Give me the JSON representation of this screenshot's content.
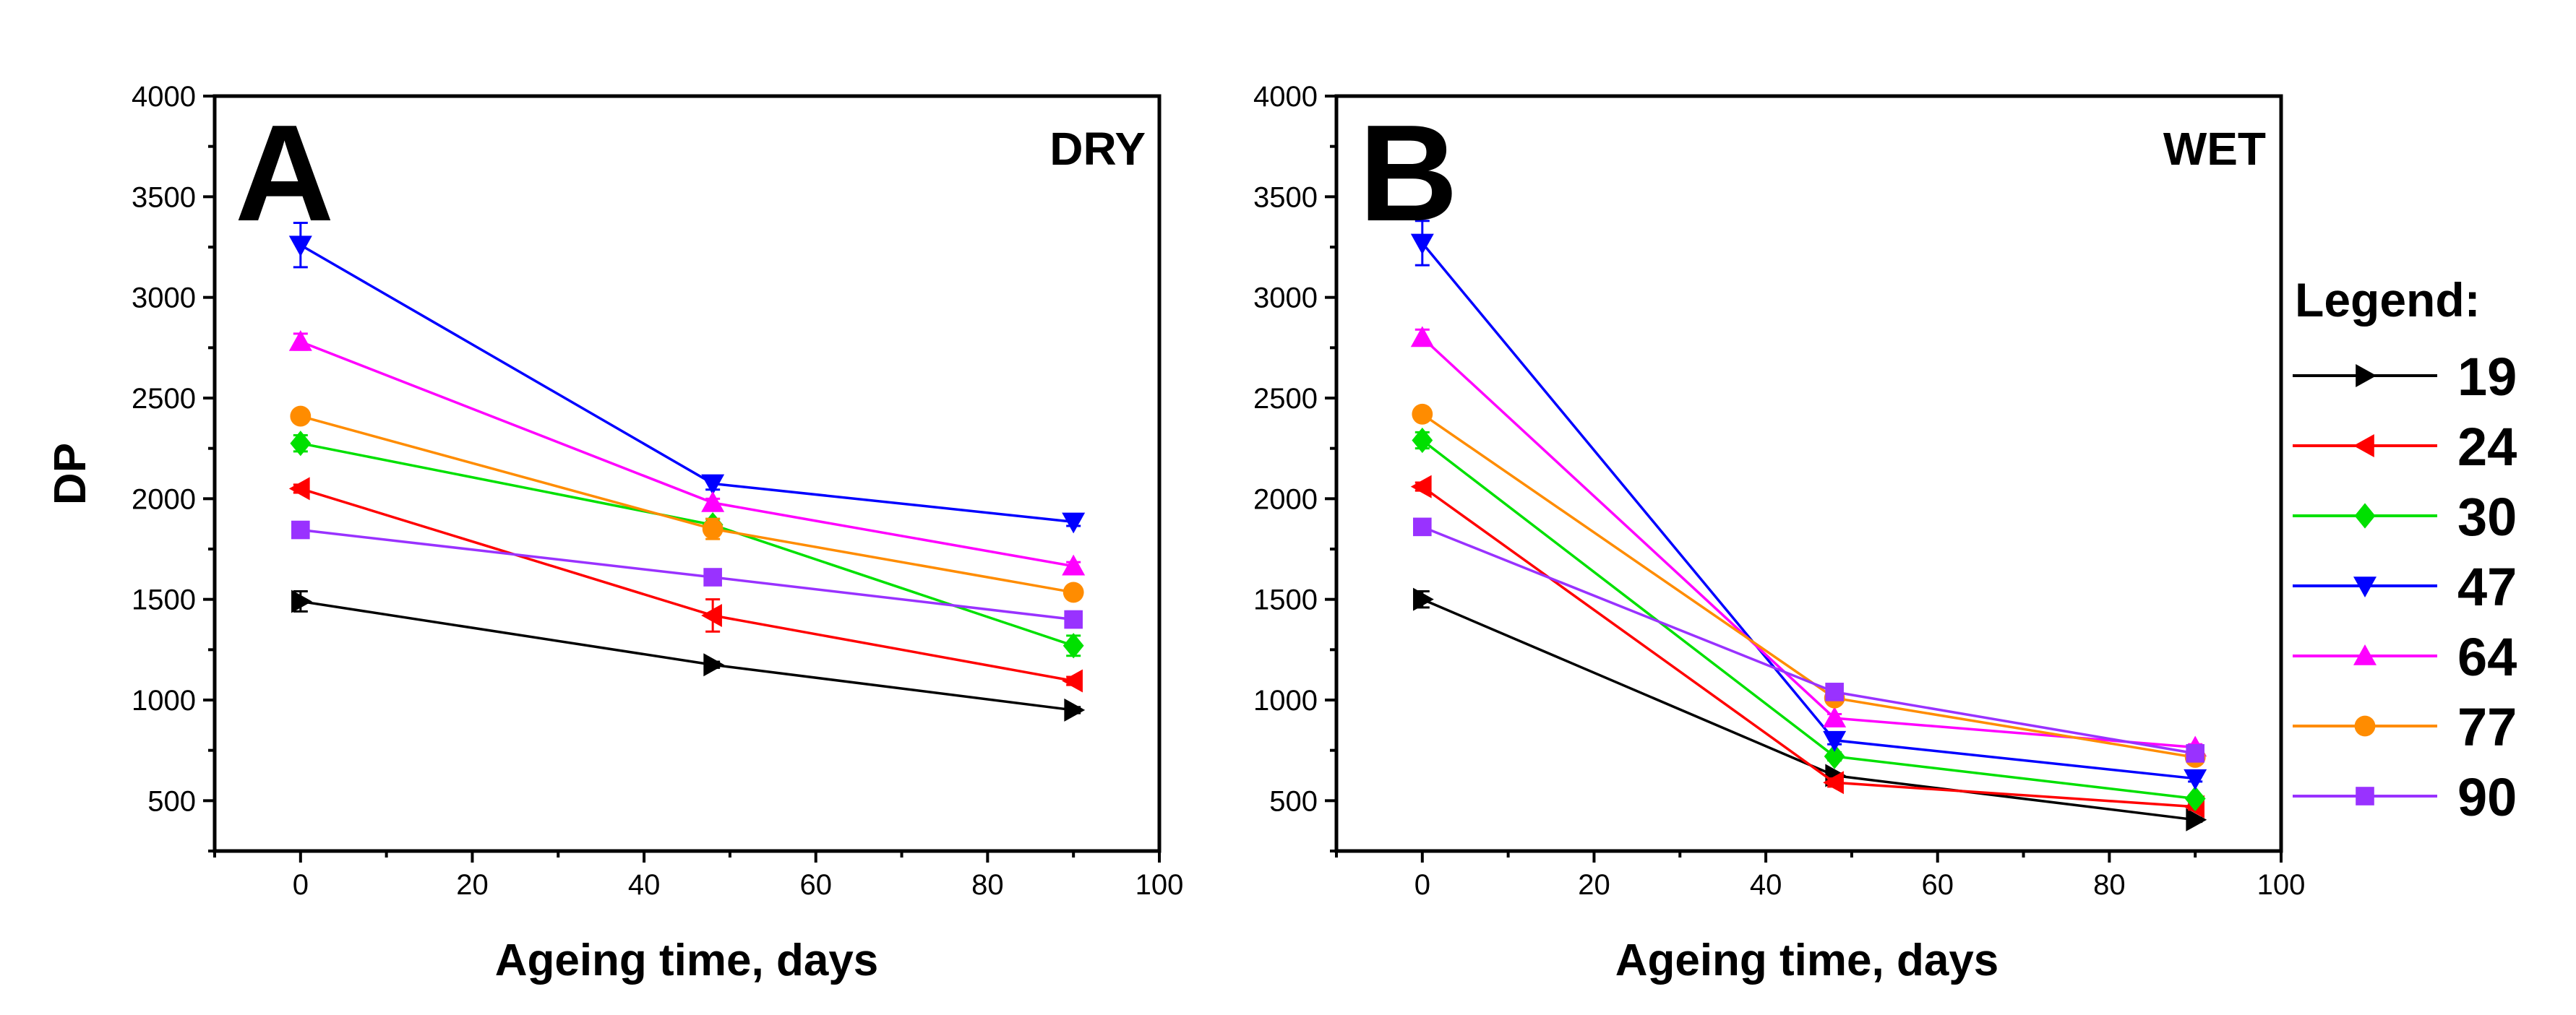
{
  "colors": {
    "19": "#000000",
    "24": "#ff0000",
    "30": "#00e000",
    "47": "#0000ff",
    "64": "#ff00ff",
    "77": "#ff8c00",
    "90": "#9932ff"
  },
  "legend": {
    "title": "Legend:",
    "items": [
      "19",
      "24",
      "30",
      "47",
      "64",
      "77",
      "90"
    ]
  },
  "chart_data": [
    {
      "type": "line",
      "panel_letter": "A",
      "corner_label": "DRY",
      "xlabel": "Ageing time, days",
      "ylabel": "DP",
      "xlim": [
        -10,
        100
      ],
      "ylim": [
        250,
        4000
      ],
      "xticks": [
        0,
        20,
        40,
        60,
        80,
        100
      ],
      "yticks": [
        500,
        1000,
        1500,
        2000,
        2500,
        3000,
        3500,
        4000
      ],
      "x": [
        0,
        48,
        90
      ],
      "series": [
        {
          "name": "19",
          "marker": "tri-right",
          "values": [
            1490,
            1175,
            950
          ],
          "errors": [
            50,
            15,
            15
          ]
        },
        {
          "name": "24",
          "marker": "tri-left",
          "values": [
            2050,
            1420,
            1095
          ],
          "errors": [
            20,
            80,
            20
          ]
        },
        {
          "name": "30",
          "marker": "diamond",
          "values": [
            2275,
            1870,
            1270
          ],
          "errors": [
            40,
            30,
            50
          ]
        },
        {
          "name": "47",
          "marker": "tri-down",
          "values": [
            3260,
            2075,
            1885
          ],
          "errors": [
            110,
            30,
            20
          ]
        },
        {
          "name": "64",
          "marker": "tri-up",
          "values": [
            2780,
            1980,
            1665
          ],
          "errors": [
            40,
            20,
            20
          ]
        },
        {
          "name": "77",
          "marker": "circle",
          "values": [
            2410,
            1850,
            1535
          ],
          "errors": [
            20,
            50,
            20
          ]
        },
        {
          "name": "90",
          "marker": "square",
          "values": [
            1845,
            1610,
            1400
          ],
          "errors": [
            15,
            15,
            40
          ]
        }
      ]
    },
    {
      "type": "line",
      "panel_letter": "B",
      "corner_label": "WET",
      "xlabel": "Ageing time, days",
      "ylabel": "",
      "xlim": [
        -10,
        100
      ],
      "ylim": [
        250,
        4000
      ],
      "xticks": [
        0,
        20,
        40,
        60,
        80,
        100
      ],
      "yticks": [
        500,
        1000,
        1500,
        2000,
        2500,
        3000,
        3500,
        4000
      ],
      "x": [
        0,
        48,
        90
      ],
      "series": [
        {
          "name": "19",
          "marker": "tri-right",
          "values": [
            1500,
            625,
            405
          ],
          "errors": [
            40,
            10,
            10
          ]
        },
        {
          "name": "24",
          "marker": "tri-left",
          "values": [
            2060,
            590,
            470
          ],
          "errors": [
            20,
            20,
            15
          ]
        },
        {
          "name": "30",
          "marker": "diamond",
          "values": [
            2290,
            720,
            510
          ],
          "errors": [
            40,
            20,
            15
          ]
        },
        {
          "name": "47",
          "marker": "tri-down",
          "values": [
            3270,
            800,
            610
          ],
          "errors": [
            110,
            20,
            15
          ]
        },
        {
          "name": "64",
          "marker": "tri-up",
          "values": [
            2800,
            910,
            765
          ],
          "errors": [
            40,
            20,
            15
          ]
        },
        {
          "name": "77",
          "marker": "circle",
          "values": [
            2420,
            1010,
            715
          ],
          "errors": [
            20,
            30,
            15
          ]
        },
        {
          "name": "90",
          "marker": "square",
          "values": [
            1860,
            1040,
            735
          ],
          "errors": [
            20,
            20,
            15
          ]
        }
      ]
    }
  ]
}
